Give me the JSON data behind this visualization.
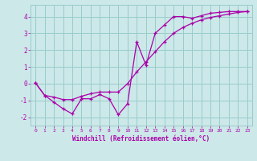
{
  "xlabel": "Windchill (Refroidissement éolien,°C)",
  "xlim": [
    -0.5,
    23.5
  ],
  "ylim": [
    -2.5,
    4.7
  ],
  "yticks": [
    -2,
    -1,
    0,
    1,
    2,
    3,
    4
  ],
  "xticks": [
    0,
    1,
    2,
    3,
    4,
    5,
    6,
    7,
    8,
    9,
    10,
    11,
    12,
    13,
    14,
    15,
    16,
    17,
    18,
    19,
    20,
    21,
    22,
    23
  ],
  "bg_color": "#cce8e8",
  "line_color": "#aa00aa",
  "grid_color": "#99cccc",
  "line1_x": [
    0,
    1,
    2,
    3,
    4,
    5,
    6,
    7,
    8,
    9,
    10,
    11,
    12,
    13,
    14,
    15,
    16,
    17,
    18,
    19,
    20,
    21,
    22,
    23
  ],
  "line1_y": [
    0.05,
    -0.7,
    -1.1,
    -1.5,
    -1.8,
    -0.9,
    -0.9,
    -0.65,
    -0.9,
    -1.85,
    -1.2,
    2.5,
    1.1,
    3.0,
    3.5,
    4.0,
    4.0,
    3.9,
    4.05,
    4.2,
    4.25,
    4.3,
    4.3,
    4.3
  ],
  "line2_x": [
    0,
    1,
    2,
    3,
    4,
    5,
    6,
    7,
    8,
    9,
    10,
    11,
    12,
    13,
    14,
    15,
    16,
    17,
    18,
    19,
    20,
    21,
    22,
    23
  ],
  "line2_y": [
    0.05,
    -0.7,
    -0.8,
    -0.95,
    -0.95,
    -0.75,
    -0.6,
    -0.5,
    -0.5,
    -0.5,
    0.0,
    0.7,
    1.3,
    1.9,
    2.5,
    3.0,
    3.35,
    3.6,
    3.8,
    3.95,
    4.05,
    4.15,
    4.25,
    4.3
  ]
}
